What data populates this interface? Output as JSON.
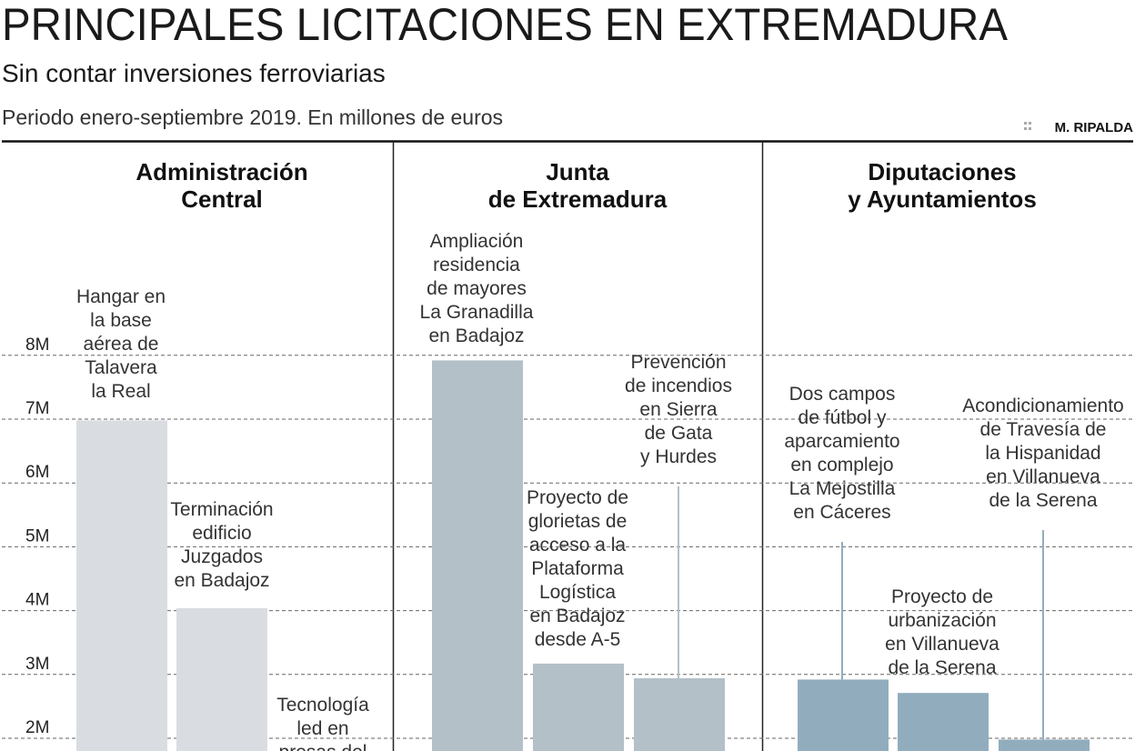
{
  "header": {
    "title": "PRINCIPALES LICITACIONES EN EXTREMADURA",
    "subtitle": "Sin contar inversiones ferroviarias",
    "note": "Periodo enero-septiembre 2019. En millones de euros",
    "credit_icon": "double-dot-icon",
    "credit": "M. RIPALDA"
  },
  "chart_data": {
    "type": "bar",
    "title": "PRINCIPALES LICITACIONES EN EXTREMADURA",
    "subtitle": "Sin contar inversiones ferroviarias",
    "ylabel": "",
    "xlabel": "",
    "y_ticks": [
      "2M",
      "3M",
      "4M",
      "5M",
      "6M",
      "7M",
      "8M"
    ],
    "y_tick_values": [
      2,
      3,
      4,
      5,
      6,
      7,
      8
    ],
    "ylim": [
      0,
      8.5
    ],
    "grid": true,
    "groups": [
      {
        "name": [
          "Administración",
          "Central"
        ],
        "color": "#d9dde1",
        "bars": [
          {
            "label": [
              "Hangar en",
              "la base",
              "aérea de",
              "Talavera",
              "la Real"
            ],
            "value": 6.98
          },
          {
            "label": [
              "Terminación",
              "edificio",
              "Juzgados",
              "en Badajoz"
            ],
            "value": 4.04
          },
          {
            "label": [
              "Tecnología",
              "led en",
              "presas del"
            ],
            "value": null
          }
        ]
      },
      {
        "name": [
          "Junta",
          "de Extremadura"
        ],
        "color": "#b4c0c7",
        "bars": [
          {
            "label": [
              "Ampliación",
              "residencia",
              "de mayores",
              "La Granadilla",
              "en Badajoz"
            ],
            "value": 7.92
          },
          {
            "label": [
              "Proyecto de",
              "glorietas de",
              "acceso a la",
              "Plataforma",
              "Logística",
              "en Badajoz",
              "desde A-5"
            ],
            "value": 3.17
          },
          {
            "label": [
              "Prevención",
              "de incendios",
              "en Sierra",
              "de Gata",
              "y Hurdes"
            ],
            "value": 2.94
          }
        ]
      },
      {
        "name": [
          "Diputaciones",
          "y Ayuntamientos"
        ],
        "color": "#91adbd",
        "bars": [
          {
            "label": [
              "Dos campos",
              "de fútbol y",
              "aparcamiento",
              "en complejo",
              "La Mejostilla",
              "en Cáceres"
            ],
            "value": 2.92
          },
          {
            "label": [
              "Proyecto de",
              "urbanización",
              "en Villanueva",
              "de la Serena"
            ],
            "value": 2.71
          },
          {
            "label": [
              "Acondicionamiento",
              "de Travesía de",
              "la Hispanidad",
              "en Villanueva",
              "de la Serena"
            ],
            "value": 1.98
          }
        ]
      }
    ]
  }
}
